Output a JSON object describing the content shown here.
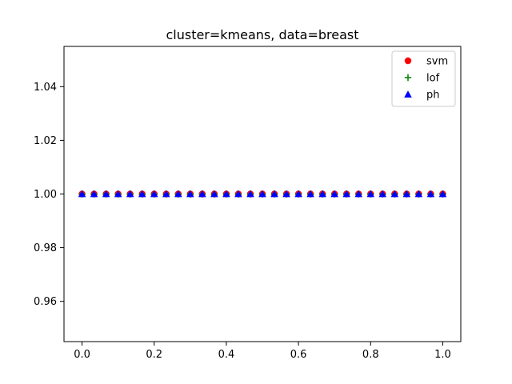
{
  "chart_data": {
    "type": "scatter",
    "title": "cluster=kmeans, data=breast",
    "xlabel": "",
    "ylabel": "",
    "xlim": [
      -0.05,
      1.05
    ],
    "ylim": [
      0.945,
      1.055
    ],
    "xticks": [
      0.0,
      0.2,
      0.4,
      0.6,
      0.8,
      1.0
    ],
    "xtick_labels": [
      "0.0",
      "0.2",
      "0.4",
      "0.6",
      "0.8",
      "1.0"
    ],
    "yticks": [
      0.96,
      0.98,
      1.0,
      1.02,
      1.04
    ],
    "ytick_labels": [
      "0.96",
      "0.98",
      "1.00",
      "1.02",
      "1.04"
    ],
    "grid": false,
    "legend_position": "top-right",
    "x": [
      0,
      0.0333,
      0.0667,
      0.1,
      0.1333,
      0.1667,
      0.2,
      0.2333,
      0.2667,
      0.3,
      0.3333,
      0.3667,
      0.4,
      0.4333,
      0.4667,
      0.5,
      0.5333,
      0.5667,
      0.6,
      0.6333,
      0.6667,
      0.7,
      0.7333,
      0.7667,
      0.8,
      0.8333,
      0.8667,
      0.9,
      0.9333,
      0.9667,
      1.0
    ],
    "series": [
      {
        "name": "svm",
        "marker": "circle",
        "color": "#ff0000",
        "values": [
          1,
          1,
          1,
          1,
          1,
          1,
          1,
          1,
          1,
          1,
          1,
          1,
          1,
          1,
          1,
          1,
          1,
          1,
          1,
          1,
          1,
          1,
          1,
          1,
          1,
          1,
          1,
          1,
          1,
          1,
          1
        ]
      },
      {
        "name": "lof",
        "marker": "plus",
        "color": "#008000",
        "values": [
          1,
          1,
          1,
          1,
          1,
          1,
          1,
          1,
          1,
          1,
          1,
          1,
          1,
          1,
          1,
          1,
          1,
          1,
          1,
          1,
          1,
          1,
          1,
          1,
          1,
          1,
          1,
          1,
          1,
          1,
          1
        ]
      },
      {
        "name": "ph",
        "marker": "triangle",
        "color": "#0000ff",
        "values": [
          1,
          1,
          1,
          1,
          1,
          1,
          1,
          1,
          1,
          1,
          1,
          1,
          1,
          1,
          1,
          1,
          1,
          1,
          1,
          1,
          1,
          1,
          1,
          1,
          1,
          1,
          1,
          1,
          1,
          1,
          1
        ]
      }
    ]
  }
}
